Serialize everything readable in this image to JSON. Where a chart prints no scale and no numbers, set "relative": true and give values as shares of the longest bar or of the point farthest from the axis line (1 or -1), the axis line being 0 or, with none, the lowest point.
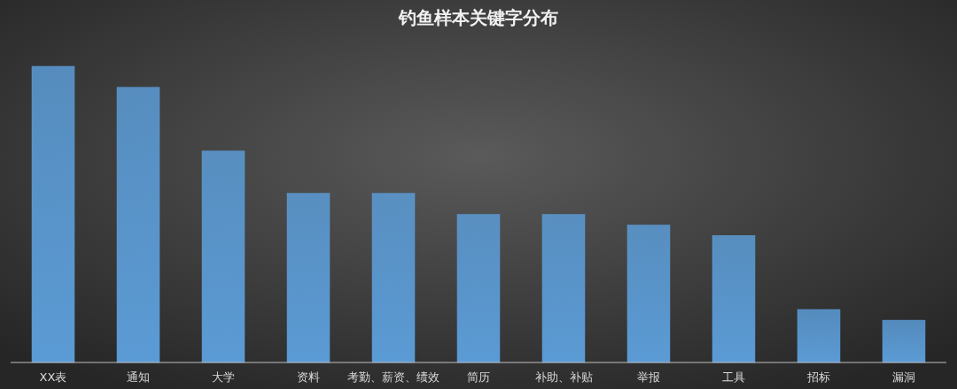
{
  "chart_data": {
    "type": "bar",
    "title": "钓鱼样本关键字分布",
    "relative": true,
    "categories": [
      "XX表",
      "通知",
      "大学",
      "资料",
      "考勤、薪资、绩效",
      "简历",
      "补助、补贴",
      "举报",
      "工具",
      "招标",
      "漏洞"
    ],
    "values": [
      1,
      0.929,
      0.714,
      0.571,
      0.571,
      0.5,
      0.5,
      0.464,
      0.429,
      0.179,
      0.143
    ],
    "color": "#5b9bd5"
  }
}
